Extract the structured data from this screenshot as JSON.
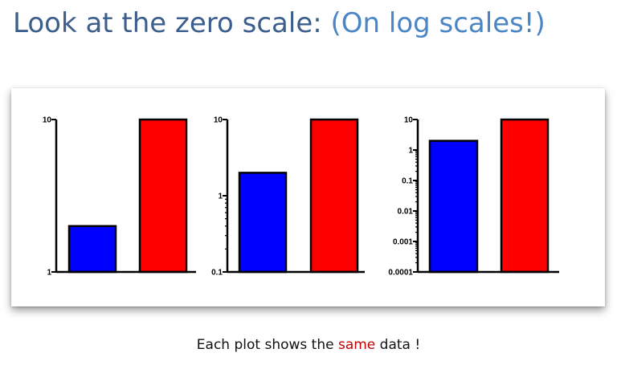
{
  "title": {
    "main": "Look at the zero scale: ",
    "accent": "(On log scales!)"
  },
  "caption": {
    "before": "Each plot shows the ",
    "highlight": "same",
    "after": " data !"
  },
  "colors": {
    "title": "#3b5e8c",
    "title_accent": "#4a86c5",
    "highlight": "#c00000"
  },
  "chart_data": [
    {
      "type": "bar",
      "scale": "log",
      "categories": [
        "",
        ""
      ],
      "values": [
        2,
        10
      ],
      "colors": [
        "#0000ff",
        "#ff0000"
      ],
      "ylim": [
        1,
        10
      ],
      "ticks": [
        {
          "value": 1,
          "label": "1"
        },
        {
          "value": 10,
          "label": "10"
        }
      ],
      "grid": false,
      "title": "",
      "xlabel": "",
      "ylabel": ""
    },
    {
      "type": "bar",
      "scale": "log",
      "categories": [
        "",
        ""
      ],
      "values": [
        2,
        10
      ],
      "colors": [
        "#0000ff",
        "#ff0000"
      ],
      "ylim": [
        0.1,
        10
      ],
      "ticks": [
        {
          "value": 0.1,
          "label": "0.1"
        },
        {
          "value": 1,
          "label": "1"
        },
        {
          "value": 10,
          "label": "10"
        }
      ],
      "grid": false,
      "title": "",
      "xlabel": "",
      "ylabel": ""
    },
    {
      "type": "bar",
      "scale": "log",
      "categories": [
        "",
        ""
      ],
      "values": [
        2,
        10
      ],
      "colors": [
        "#0000ff",
        "#ff0000"
      ],
      "ylim": [
        0.0001,
        10
      ],
      "ticks": [
        {
          "value": 0.0001,
          "label": "0.0001"
        },
        {
          "value": 0.001,
          "label": "0.001"
        },
        {
          "value": 0.01,
          "label": "0.01"
        },
        {
          "value": 0.1,
          "label": "0.1"
        },
        {
          "value": 1,
          "label": "1"
        },
        {
          "value": 10,
          "label": "10"
        }
      ],
      "grid": false,
      "title": "",
      "xlabel": "",
      "ylabel": ""
    }
  ]
}
